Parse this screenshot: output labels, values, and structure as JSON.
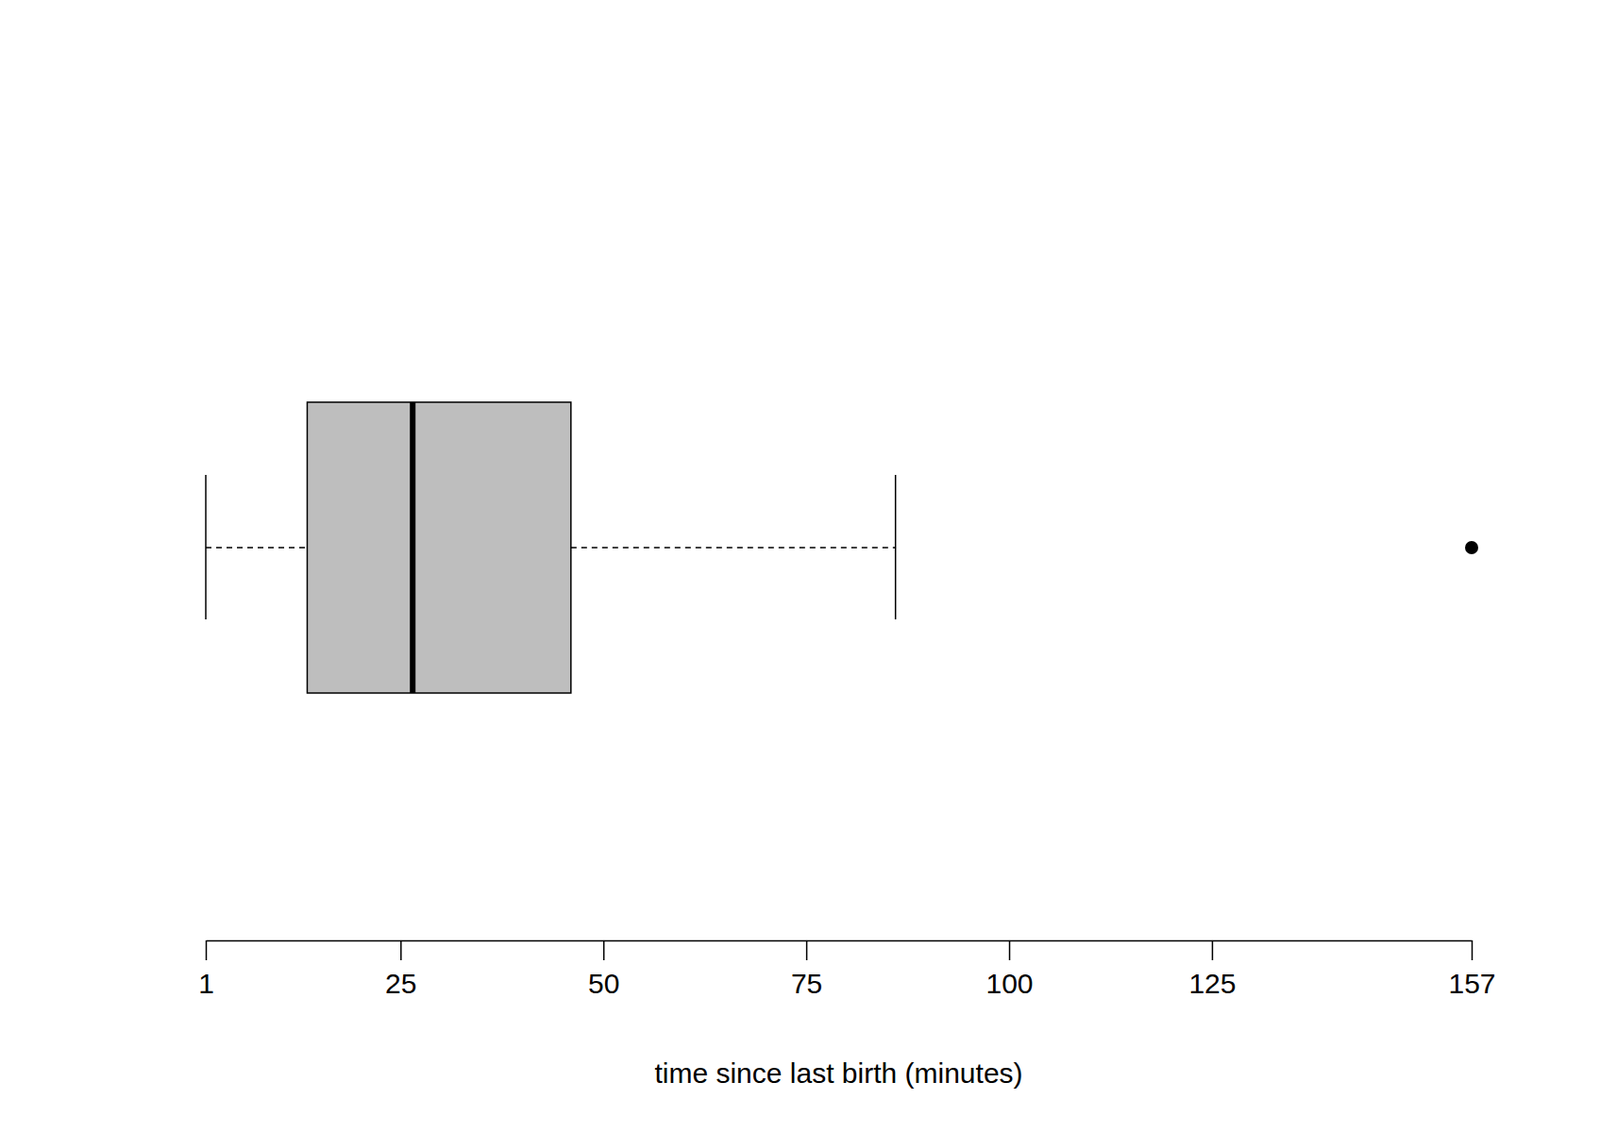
{
  "chart_data": {
    "type": "box",
    "orientation": "horizontal",
    "xlabel": "time since last birth (minutes)",
    "xlim": [
      1,
      157
    ],
    "xticks": [
      1,
      25,
      50,
      75,
      100,
      125,
      157
    ],
    "tick_labels": "x",
    "whisker_low": 1,
    "q1": 13.5,
    "median": 26.5,
    "q3": 46,
    "whisker_high": 86,
    "outliers": [
      157
    ],
    "color": "#bebebe"
  }
}
